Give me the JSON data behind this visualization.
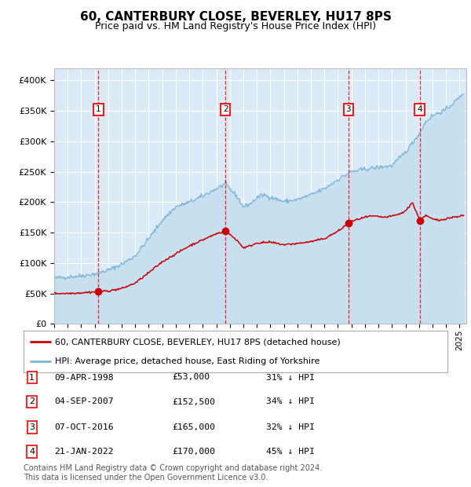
{
  "title": "60, CANTERBURY CLOSE, BEVERLEY, HU17 8PS",
  "subtitle": "Price paid vs. HM Land Registry's House Price Index (HPI)",
  "title_fontsize": 11,
  "subtitle_fontsize": 9,
  "plot_bg_color": "#daeaf7",
  "red_line_color": "#cc0000",
  "blue_line_color": "#7ab3d8",
  "blue_fill_color": "#c8dff0",
  "ylim": [
    0,
    420000
  ],
  "yticks": [
    0,
    50000,
    100000,
    150000,
    200000,
    250000,
    300000,
    350000,
    400000
  ],
  "ytick_labels": [
    "£0",
    "£50K",
    "£100K",
    "£150K",
    "£200K",
    "£250K",
    "£300K",
    "£350K",
    "£400K"
  ],
  "xlim_start": 1995.0,
  "xlim_end": 2025.5,
  "purchases": [
    {
      "num": 1,
      "date_label": "09-APR-1998",
      "price": 53000,
      "year": 1998.27,
      "hpi_pct": "31% ↓ HPI"
    },
    {
      "num": 2,
      "date_label": "04-SEP-2007",
      "price": 152500,
      "year": 2007.67,
      "hpi_pct": "34% ↓ HPI"
    },
    {
      "num": 3,
      "date_label": "07-OCT-2016",
      "price": 165000,
      "year": 2016.77,
      "hpi_pct": "32% ↓ HPI"
    },
    {
      "num": 4,
      "date_label": "21-JAN-2022",
      "price": 170000,
      "year": 2022.05,
      "hpi_pct": "45% ↓ HPI"
    }
  ],
  "legend_line1": "60, CANTERBURY CLOSE, BEVERLEY, HU17 8PS (detached house)",
  "legend_line2": "HPI: Average price, detached house, East Riding of Yorkshire",
  "footnote": "Contains HM Land Registry data © Crown copyright and database right 2024.\nThis data is licensed under the Open Government Licence v3.0.",
  "table_rows": [
    [
      "1",
      "09-APR-1998",
      "£53,000",
      "31% ↓ HPI"
    ],
    [
      "2",
      "04-SEP-2007",
      "£152,500",
      "34% ↓ HPI"
    ],
    [
      "3",
      "07-OCT-2016",
      "£165,000",
      "32% ↓ HPI"
    ],
    [
      "4",
      "21-JAN-2022",
      "£170,000",
      "45% ↓ HPI"
    ]
  ]
}
